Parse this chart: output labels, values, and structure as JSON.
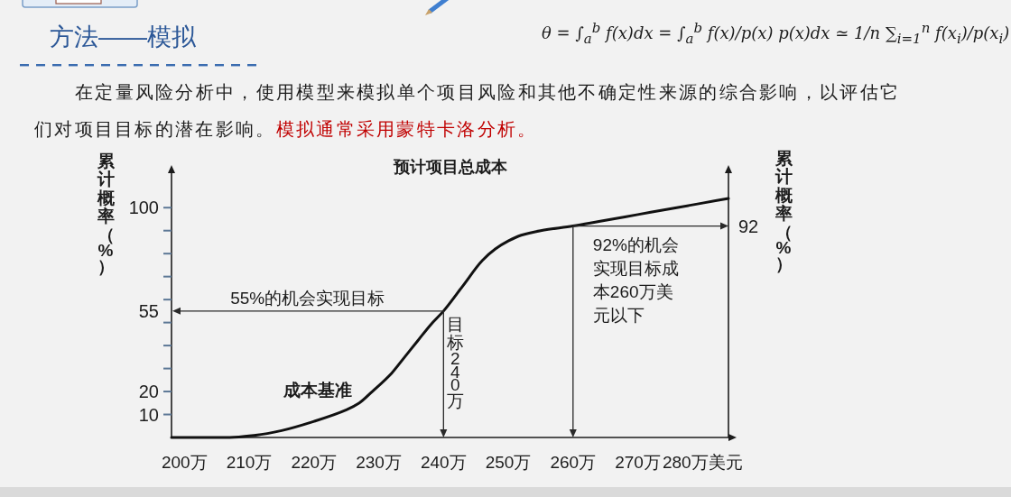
{
  "chart_data": {
    "type": "line",
    "title": "预计项目总成本",
    "ylabel": "累计概率（%）",
    "y2label": "累计概率（%）",
    "xlim": [
      198,
      284
    ],
    "xticks": [
      {
        "value": 200,
        "label": "200万"
      },
      {
        "value": 210,
        "label": "210万"
      },
      {
        "value": 220,
        "label": "220万"
      },
      {
        "value": 230,
        "label": "230万"
      },
      {
        "value": 240,
        "label": "240万"
      },
      {
        "value": 250,
        "label": "250万"
      },
      {
        "value": 260,
        "label": "260万"
      },
      {
        "value": 270,
        "label": "270万"
      },
      {
        "value": 280,
        "label": "280万美元"
      }
    ],
    "ylim": [
      0,
      115
    ],
    "yticks": [
      10,
      20,
      {
        "value": 30,
        "label": null
      },
      {
        "value": 40,
        "label": null
      },
      {
        "value": 50,
        "label": null
      },
      55,
      {
        "value": 60,
        "label": null
      },
      {
        "value": 70,
        "label": null
      },
      {
        "value": 80,
        "label": null
      },
      {
        "value": 90,
        "label": null
      },
      100
    ],
    "series": [
      {
        "name": "成本基准",
        "color": "#111111",
        "x": [
          198,
          207,
          211,
          215,
          220,
          225,
          227,
          229,
          232,
          234,
          236,
          238,
          240,
          243,
          246,
          248,
          250,
          252,
          255,
          260,
          264,
          268,
          272,
          276,
          280,
          284
        ],
        "values": [
          0,
          0,
          1,
          3,
          7,
          12,
          15,
          20,
          28,
          35,
          42,
          49,
          55,
          66,
          77,
          82,
          85.5,
          88,
          90,
          92,
          94,
          96,
          98,
          100,
          102,
          104
        ]
      }
    ],
    "ref_lines": [
      {
        "axis": "x",
        "value": 240,
        "label": "目标240万"
      },
      {
        "axis": "y",
        "value": 55,
        "label": "55%的机会实现目标"
      },
      {
        "axis": "x",
        "value": 260,
        "label": "92%的机会实现目标成本260万美元以下"
      },
      {
        "axis": "y",
        "value": 92,
        "label": "92"
      }
    ],
    "annotations": [
      "方法——模拟",
      "θ = ∫$_{a}$$^{b}$ f(x)dx = ∫$_{a}$$^{b}$ f(x)/p(x) p(x)dx ≃ 1/n ∑$_{i=1}$$^{n}$ f(x$_{i}$)/p(x$_{i}$)",
      "在定量风险分析中，使用模型来模拟单个项目风险和其他不确定性来源的综合影响，以评估它们对项目目标的潜在影响。",
      "模拟通常采用蒙特卡洛分析。"
    ]
  }
}
